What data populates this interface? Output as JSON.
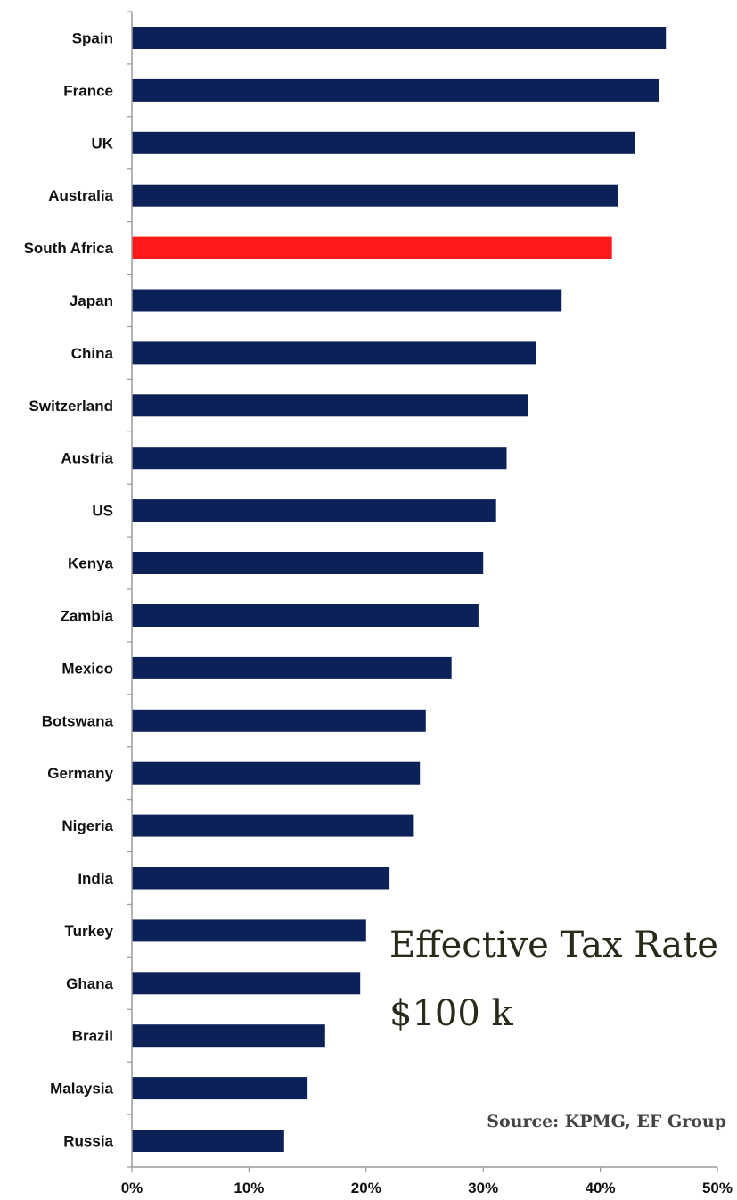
{
  "chart_data": {
    "type": "bar",
    "orientation": "horizontal",
    "title": "Effective Tax Rate",
    "subtitle": "$100 k",
    "source": "Source: KPMG, EF Group",
    "categories": [
      "Spain",
      "France",
      "UK",
      "Australia",
      "South Africa",
      "Japan",
      "China",
      "Switzerland",
      "Austria",
      "US",
      "Kenya",
      "Zambia",
      "Mexico",
      "Botswana",
      "Germany",
      "Nigeria",
      "India",
      "Turkey",
      "Ghana",
      "Brazil",
      "Malaysia",
      "Russia"
    ],
    "values": [
      45.6,
      45.0,
      43.0,
      41.5,
      41.0,
      36.7,
      34.5,
      33.8,
      32.0,
      31.1,
      30.0,
      29.6,
      27.3,
      25.1,
      24.6,
      24.0,
      22.0,
      20.0,
      19.5,
      16.5,
      15.0,
      13.0
    ],
    "highlight": "South Africa",
    "xlim": [
      0,
      50
    ],
    "xticks": [
      0,
      10,
      20,
      30,
      40,
      50
    ],
    "xtick_labels": [
      "0%",
      "10%",
      "20%",
      "30%",
      "40%",
      "50%"
    ],
    "grid": false,
    "colors": {
      "bar": "#0d2159",
      "highlight": "#ff1a1a",
      "axis": "#9a9a9a"
    }
  }
}
